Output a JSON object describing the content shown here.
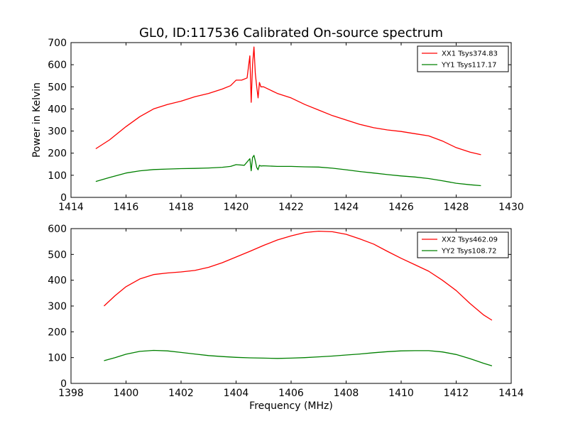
{
  "figure": {
    "title": "GL0, ID:117536 Calibrated On-source spectrum",
    "ylabel": "Power in Kelvin",
    "xlabel": "Frequency (MHz)"
  },
  "colors": {
    "red": "#ff0000",
    "green": "#008000"
  },
  "chart_data": [
    {
      "type": "line",
      "title": "GL0, ID:117536 Calibrated On-source spectrum",
      "xlabel": "",
      "ylabel": "Power in Kelvin",
      "xlim": [
        1414,
        1430
      ],
      "ylim": [
        0,
        700
      ],
      "xticks": [
        "1414",
        "1416",
        "1418",
        "1420",
        "1422",
        "1424",
        "1426",
        "1428",
        "1430"
      ],
      "yticks": [
        "0",
        "100",
        "200",
        "300",
        "400",
        "500",
        "600",
        "700"
      ],
      "legend_position": "top-right",
      "grid": false,
      "series": [
        {
          "name": "XX1 Tsys374.83",
          "color": "#ff0000",
          "x": [
            1414.9,
            1415.4,
            1416.0,
            1416.5,
            1417.0,
            1417.5,
            1418.0,
            1418.5,
            1419.0,
            1419.5,
            1419.8,
            1420.0,
            1420.2,
            1420.4,
            1420.5,
            1420.55,
            1420.6,
            1420.65,
            1420.7,
            1420.75,
            1420.8,
            1420.85,
            1420.9,
            1421.0,
            1421.5,
            1422.0,
            1422.5,
            1423.0,
            1423.5,
            1424.0,
            1424.5,
            1425.0,
            1425.5,
            1426.0,
            1426.5,
            1427.0,
            1427.5,
            1428.0,
            1428.5,
            1428.9
          ],
          "y": [
            220,
            260,
            320,
            365,
            400,
            420,
            435,
            455,
            470,
            490,
            505,
            530,
            530,
            540,
            640,
            430,
            600,
            680,
            560,
            500,
            450,
            520,
            500,
            500,
            470,
            450,
            420,
            395,
            370,
            350,
            330,
            315,
            305,
            298,
            288,
            278,
            255,
            225,
            205,
            193
          ]
        },
        {
          "name": "YY1 Tsys117.17",
          "color": "#008000",
          "x": [
            1414.9,
            1415.4,
            1416.0,
            1416.5,
            1417.0,
            1417.5,
            1418.0,
            1418.5,
            1419.0,
            1419.5,
            1419.8,
            1420.0,
            1420.3,
            1420.5,
            1420.55,
            1420.6,
            1420.65,
            1420.7,
            1420.75,
            1420.8,
            1420.85,
            1420.9,
            1421.0,
            1421.5,
            1422.0,
            1422.5,
            1423.0,
            1423.5,
            1424.0,
            1424.5,
            1425.0,
            1425.5,
            1426.0,
            1426.5,
            1427.0,
            1427.5,
            1428.0,
            1428.5,
            1428.9
          ],
          "y": [
            72,
            90,
            110,
            120,
            126,
            128,
            130,
            131,
            133,
            136,
            140,
            148,
            145,
            175,
            120,
            180,
            190,
            165,
            135,
            125,
            145,
            142,
            143,
            140,
            140,
            138,
            137,
            132,
            125,
            117,
            110,
            103,
            97,
            92,
            85,
            75,
            64,
            57,
            53
          ]
        }
      ]
    },
    {
      "type": "line",
      "title": "",
      "xlabel": "Frequency (MHz)",
      "ylabel": "",
      "xlim": [
        1398,
        1414
      ],
      "ylim": [
        0,
        600
      ],
      "xticks": [
        "1398",
        "1400",
        "1402",
        "1404",
        "1406",
        "1408",
        "1410",
        "1412",
        "1414"
      ],
      "yticks": [
        "0",
        "100",
        "200",
        "300",
        "400",
        "500",
        "600"
      ],
      "legend_position": "top-right",
      "grid": false,
      "series": [
        {
          "name": "XX2 Tsys462.09",
          "color": "#ff0000",
          "x": [
            1399.2,
            1399.6,
            1400.0,
            1400.5,
            1401.0,
            1401.5,
            1402.0,
            1402.5,
            1403.0,
            1403.5,
            1404.0,
            1404.5,
            1405.0,
            1405.5,
            1406.0,
            1406.5,
            1407.0,
            1407.5,
            1408.0,
            1408.5,
            1409.0,
            1409.5,
            1410.0,
            1410.5,
            1411.0,
            1411.5,
            1412.0,
            1412.5,
            1413.0,
            1413.3
          ],
          "y": [
            300,
            340,
            375,
            405,
            422,
            428,
            432,
            438,
            450,
            468,
            490,
            512,
            535,
            556,
            572,
            585,
            590,
            588,
            578,
            560,
            540,
            512,
            485,
            460,
            435,
            400,
            360,
            310,
            265,
            245
          ]
        },
        {
          "name": "YY2 Tsys108.72",
          "color": "#008000",
          "x": [
            1399.2,
            1399.6,
            1400.0,
            1400.5,
            1401.0,
            1401.5,
            1402.0,
            1402.5,
            1403.0,
            1403.5,
            1404.0,
            1404.5,
            1405.0,
            1405.5,
            1406.0,
            1406.5,
            1407.0,
            1407.5,
            1408.0,
            1408.5,
            1409.0,
            1409.5,
            1410.0,
            1410.5,
            1411.0,
            1411.5,
            1412.0,
            1412.5,
            1413.0,
            1413.3
          ],
          "y": [
            88,
            100,
            113,
            124,
            128,
            126,
            120,
            114,
            108,
            104,
            101,
            99,
            98,
            97,
            98,
            100,
            103,
            106,
            110,
            114,
            119,
            123,
            126,
            127,
            127,
            122,
            112,
            96,
            78,
            68
          ]
        }
      ]
    }
  ]
}
